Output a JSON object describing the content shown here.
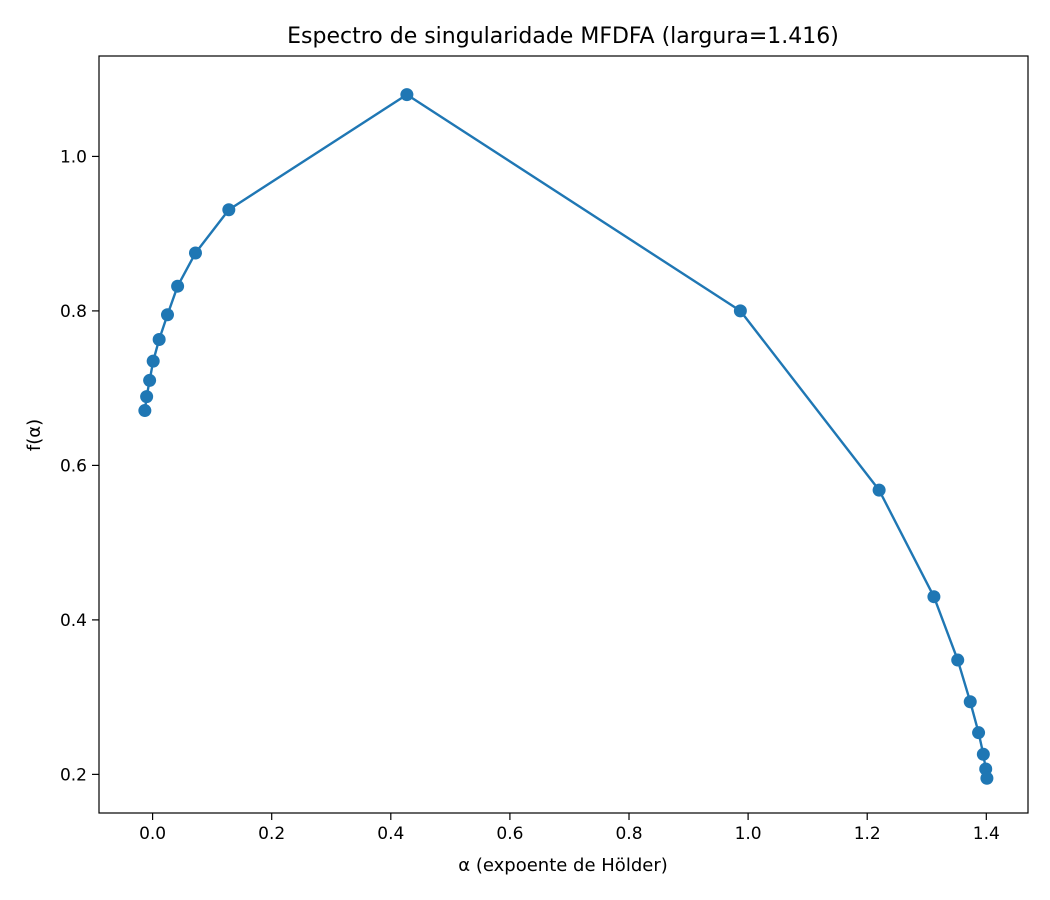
{
  "chart_data": {
    "type": "line",
    "title": "Espectro de singularidade MFDFA (largura=1.416)",
    "xlabel": "α (expoente de Hölder)",
    "ylabel": "f(α)",
    "xlim": [
      -0.09,
      1.47
    ],
    "ylim": [
      0.15,
      1.13
    ],
    "xticks": [
      {
        "value": 0.0,
        "label": "0.0"
      },
      {
        "value": 0.2,
        "label": "0.2"
      },
      {
        "value": 0.4,
        "label": "0.4"
      },
      {
        "value": 0.6,
        "label": "0.6"
      },
      {
        "value": 0.8,
        "label": "0.8"
      },
      {
        "value": 1.0,
        "label": "1.0"
      },
      {
        "value": 1.2,
        "label": "1.2"
      },
      {
        "value": 1.4,
        "label": "1.4"
      }
    ],
    "yticks": [
      {
        "value": 0.2,
        "label": "0.2"
      },
      {
        "value": 0.4,
        "label": "0.4"
      },
      {
        "value": 0.6,
        "label": "0.6"
      },
      {
        "value": 0.8,
        "label": "0.8"
      },
      {
        "value": 1.0,
        "label": "1.0"
      }
    ],
    "grid": false,
    "series": [
      {
        "color": "#1f77b4",
        "marker": "circle",
        "points": [
          {
            "x": -0.013,
            "y": 0.671
          },
          {
            "x": -0.01,
            "y": 0.689
          },
          {
            "x": -0.005,
            "y": 0.71
          },
          {
            "x": 0.001,
            "y": 0.735
          },
          {
            "x": 0.011,
            "y": 0.763
          },
          {
            "x": 0.025,
            "y": 0.795
          },
          {
            "x": 0.042,
            "y": 0.832
          },
          {
            "x": 0.072,
            "y": 0.875
          },
          {
            "x": 0.128,
            "y": 0.931
          },
          {
            "x": 0.427,
            "y": 1.08
          },
          {
            "x": 0.987,
            "y": 0.8
          },
          {
            "x": 1.22,
            "y": 0.568
          },
          {
            "x": 1.312,
            "y": 0.43
          },
          {
            "x": 1.352,
            "y": 0.348
          },
          {
            "x": 1.373,
            "y": 0.294
          },
          {
            "x": 1.387,
            "y": 0.254
          },
          {
            "x": 1.395,
            "y": 0.226
          },
          {
            "x": 1.399,
            "y": 0.207
          },
          {
            "x": 1.401,
            "y": 0.195
          }
        ]
      }
    ]
  }
}
